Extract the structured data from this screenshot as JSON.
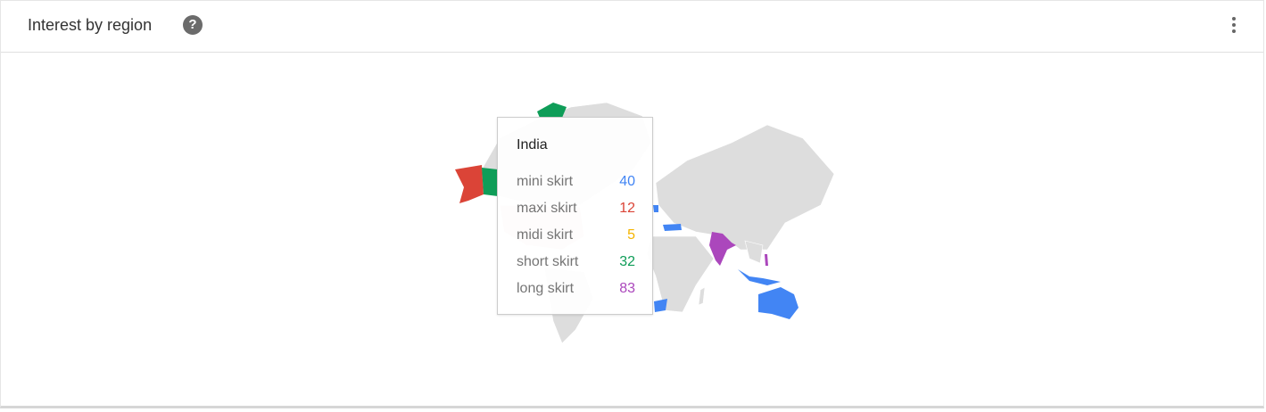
{
  "header": {
    "title": "Interest by region",
    "help_icon": "question-circle-icon",
    "menu_icon": "more-vert-icon"
  },
  "tooltip": {
    "region": "India",
    "rows": [
      {
        "label": "mini skirt",
        "value": "40",
        "color": "#4285f4"
      },
      {
        "label": "maxi skirt",
        "value": "12",
        "color": "#db4437"
      },
      {
        "label": "midi skirt",
        "value": "5",
        "color": "#f4b400"
      },
      {
        "label": "short skirt",
        "value": "32",
        "color": "#0f9d58"
      },
      {
        "label": "long skirt",
        "value": "83",
        "color": "#ab47bc"
      }
    ]
  },
  "map": {
    "base_color": "#dddddd"
  }
}
